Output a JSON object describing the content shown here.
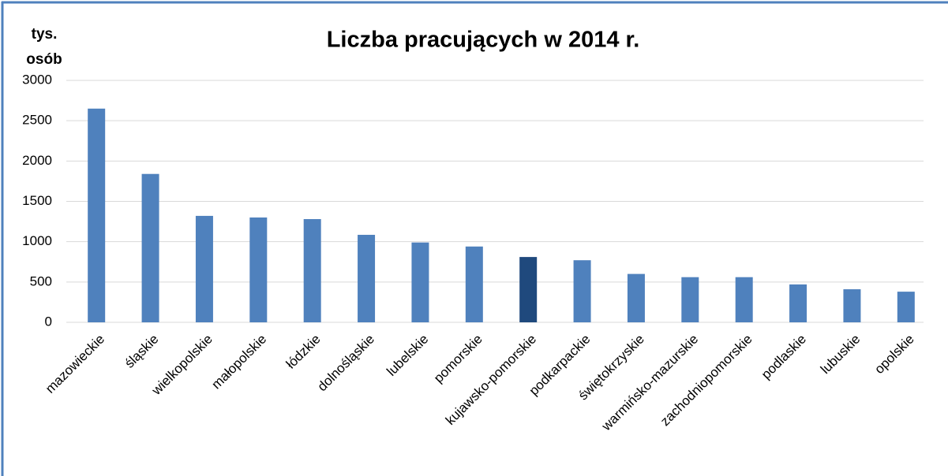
{
  "chart_data": {
    "type": "bar",
    "title": "Liczba pracujących w 2014 r.",
    "y_label": [
      "tys.",
      "osób"
    ],
    "categories": [
      "mazowieckie",
      "śląskie",
      "wielkopolskie",
      "małopolskie",
      "łódzkie",
      "dolnośląskie",
      "lubelskie",
      "pomorskie",
      "kujawsko-pomorskie",
      "podkarpackie",
      "świętokrzyskie",
      "warmińsko-mazurskie",
      "zachodniopomorskie",
      "podlaskie",
      "lubuskie",
      "opolskie"
    ],
    "values": [
      2650,
      1840,
      1320,
      1300,
      1280,
      1085,
      990,
      940,
      810,
      770,
      600,
      560,
      560,
      470,
      410,
      380
    ],
    "colors": [
      "#4f81bd",
      "#4f81bd",
      "#4f81bd",
      "#4f81bd",
      "#4f81bd",
      "#4f81bd",
      "#4f81bd",
      "#4f81bd",
      "#1f497d",
      "#4f81bd",
      "#4f81bd",
      "#4f81bd",
      "#4f81bd",
      "#4f81bd",
      "#4f81bd",
      "#4f81bd"
    ],
    "ylim": [
      0,
      3000
    ],
    "yticks": [
      0,
      500,
      1000,
      1500,
      2000,
      2500,
      3000
    ],
    "grid": true
  }
}
